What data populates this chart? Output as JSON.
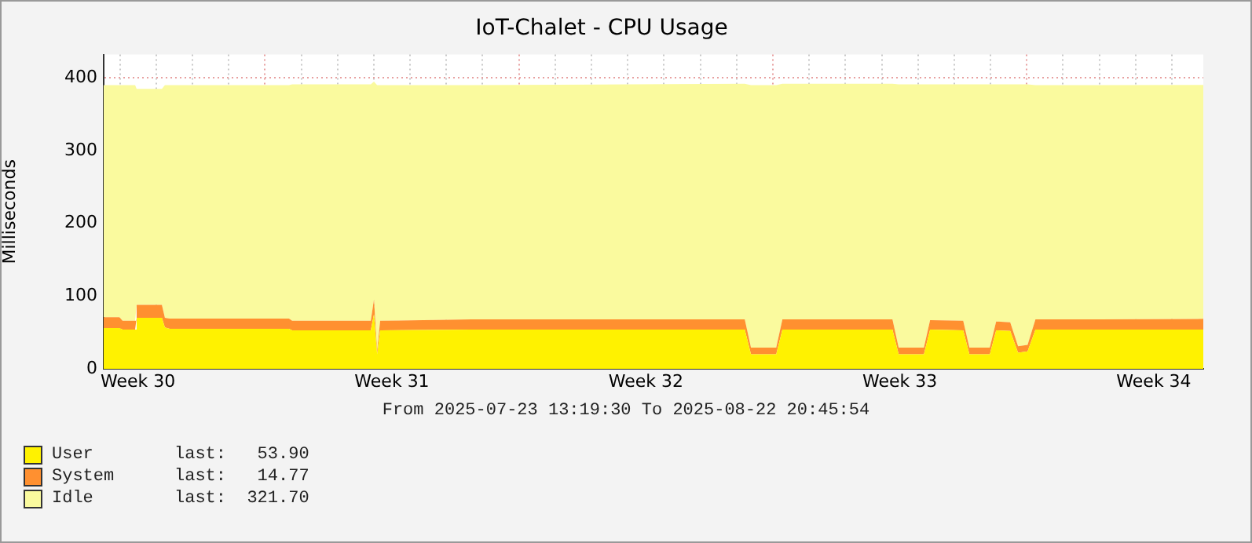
{
  "chart_data": {
    "type": "area",
    "title": "IoT-Chalet - CPU Usage",
    "subtitle": "From 2025-07-23 13:19:30 To 2025-08-22 20:45:54",
    "ylabel": "Milliseconds",
    "stacked": true,
    "grid": true,
    "legend": "bottom left",
    "x": [
      "2025-07-23T13:19",
      "2025-07-23T23:43",
      "2025-07-24T01:49",
      "2025-07-24T10:07",
      "2025-07-24T11:07",
      "2025-07-25T03:49",
      "2025-07-25T05:49",
      "2025-07-25T09:01",
      "2025-07-28T15:55",
      "2025-07-28T18:01",
      "2025-07-30T22:01",
      "2025-07-31T00:07",
      "2025-07-31T02:13",
      "2025-07-31T04:13",
      "2025-08-02T16:31",
      "2025-08-07T00:31",
      "2025-08-10T05:25",
      "2025-08-10T09:31",
      "2025-08-11T02:13",
      "2025-08-11T06:19",
      "2025-08-14T07:07",
      "2025-08-14T11:13",
      "2025-08-15T03:55",
      "2025-08-15T08:01",
      "2025-08-16T05:55",
      "2025-08-16T10:01",
      "2025-08-16T23:31",
      "2025-08-17T03:43",
      "2025-08-17T13:01",
      "2025-08-17T18:13",
      "2025-08-18T00:31",
      "2025-08-18T05:43",
      "2025-08-20T00:19",
      "2025-08-22T20:45"
    ],
    "series": [
      {
        "name": "User",
        "color": "#fff200",
        "values": [
          56,
          56,
          54,
          54,
          70,
          70,
          57,
          55,
          55,
          53,
          53,
          75,
          20,
          53,
          54,
          54,
          54,
          20,
          20,
          54,
          54,
          20,
          20,
          54,
          53,
          20,
          20,
          53,
          52,
          22,
          24,
          54,
          54,
          53.9
        ]
      },
      {
        "name": "System",
        "color": "#ff9030",
        "values": [
          15,
          15,
          12,
          12,
          18,
          18,
          13,
          14,
          14,
          13,
          13,
          20,
          5,
          13,
          14,
          14,
          14,
          9,
          9,
          14,
          14,
          9,
          9,
          13,
          13,
          9,
          9,
          12,
          12,
          9,
          9,
          14,
          14,
          14.77
        ]
      },
      {
        "name": "Idle",
        "color": "#fafa9e",
        "values": [
          319,
          319,
          324,
          324,
          297,
          297,
          320,
          321,
          321,
          325,
          325,
          300,
          365,
          324,
          322,
          323,
          324,
          361,
          361,
          324,
          324,
          362,
          362,
          324,
          325,
          362,
          362,
          326,
          327,
          360,
          358,
          322,
          322,
          321.7
        ]
      }
    ],
    "annotations": [
      "last:   53.90",
      "last:   14.77",
      "last:  321.70"
    ],
    "xlim": [
      "2025-07-23T13:19",
      "2025-08-22T20:45"
    ],
    "xticks": [
      {
        "value": "2025-07-24T12:00",
        "label": "Week 30"
      },
      {
        "value": "2025-07-31T12:00",
        "label": "Week 31"
      },
      {
        "value": "2025-08-07T12:00",
        "label": "Week 32"
      },
      {
        "value": "2025-08-14T12:00",
        "label": "Week 33"
      },
      {
        "value": "2025-08-21T12:00",
        "label": "Week 34"
      },
      {
        "value": "2025-07-24",
        "label": null
      },
      {
        "value": "2025-07-25",
        "label": null
      },
      {
        "value": "2025-07-26",
        "label": null
      },
      {
        "value": "2025-07-27",
        "label": null
      },
      {
        "value": "2025-07-28",
        "label": null
      },
      {
        "value": "2025-07-29",
        "label": null
      },
      {
        "value": "2025-07-30",
        "label": null
      },
      {
        "value": "2025-07-31",
        "label": null
      },
      {
        "value": "2025-08-01",
        "label": null
      },
      {
        "value": "2025-08-02",
        "label": null
      },
      {
        "value": "2025-08-03",
        "label": null
      },
      {
        "value": "2025-08-04",
        "label": null
      },
      {
        "value": "2025-08-05",
        "label": null
      },
      {
        "value": "2025-08-06",
        "label": null
      },
      {
        "value": "2025-08-07",
        "label": null
      },
      {
        "value": "2025-08-08",
        "label": null
      },
      {
        "value": "2025-08-09",
        "label": null
      },
      {
        "value": "2025-08-10",
        "label": null
      },
      {
        "value": "2025-08-11",
        "label": null
      },
      {
        "value": "2025-08-12",
        "label": null
      },
      {
        "value": "2025-08-13",
        "label": null
      },
      {
        "value": "2025-08-14",
        "label": null
      },
      {
        "value": "2025-08-15",
        "label": null
      },
      {
        "value": "2025-08-16",
        "label": null
      },
      {
        "value": "2025-08-17",
        "label": null
      },
      {
        "value": "2025-08-18",
        "label": null
      },
      {
        "value": "2025-08-19",
        "label": null
      },
      {
        "value": "2025-08-20",
        "label": null
      },
      {
        "value": "2025-08-21",
        "label": null
      },
      {
        "value": "2025-08-22",
        "label": null
      }
    ],
    "ylim": [
      0,
      432
    ],
    "yticks": [
      0,
      100,
      200,
      300,
      400
    ]
  }
}
